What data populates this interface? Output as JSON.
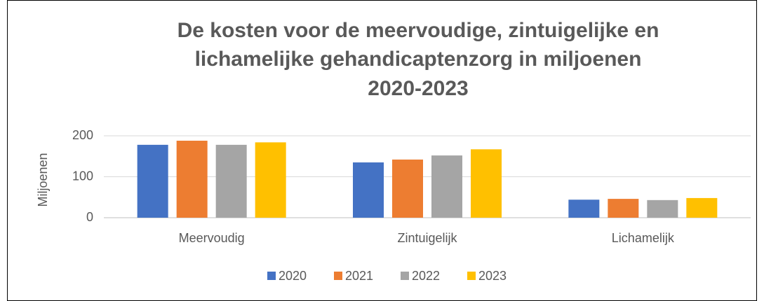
{
  "chart_data": {
    "type": "bar",
    "title": [
      "De kosten voor de meervoudige, zintuigelijke en",
      "lichamelijke gehandicaptenzorg in miljoenen",
      "2020-2023"
    ],
    "y_label": "Miljoenen",
    "categories": [
      "Meervoudig",
      "Zintuigelijk",
      "Lichamelijk"
    ],
    "series": [
      {
        "name": "2020",
        "color": "#4472c4",
        "values": [
          178,
          135,
          44
        ]
      },
      {
        "name": "2021",
        "color": "#ed7d31",
        "values": [
          188,
          142,
          46
        ]
      },
      {
        "name": "2022",
        "color": "#a5a5a5",
        "values": [
          178,
          152,
          43
        ]
      },
      {
        "name": "2023",
        "color": "#ffc000",
        "values": [
          184,
          167,
          48
        ]
      }
    ],
    "ylim": [
      0,
      200
    ],
    "yticks": [
      0,
      100,
      200
    ],
    "grid": true,
    "legend": "bottom"
  }
}
